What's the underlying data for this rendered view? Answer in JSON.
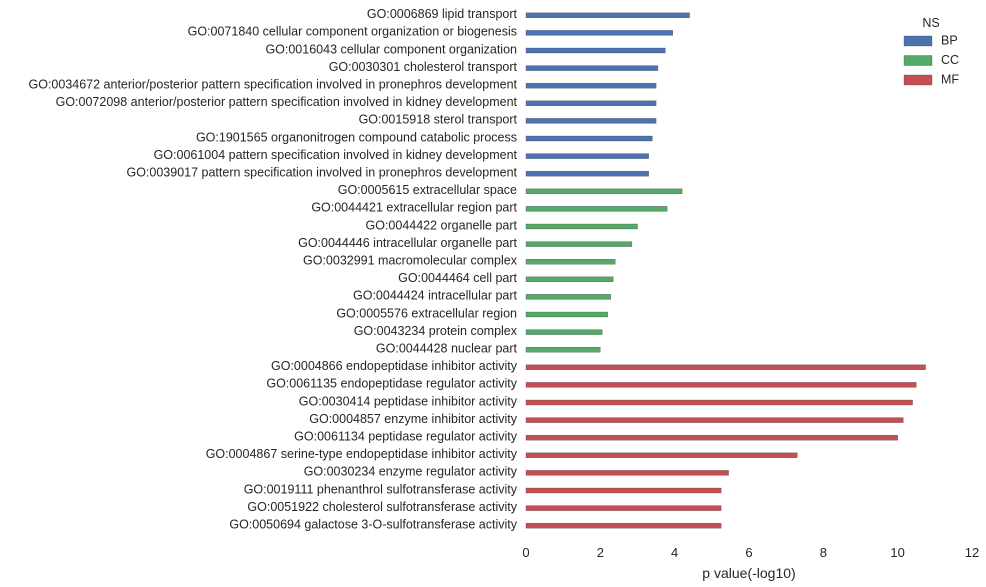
{
  "chart_data": {
    "type": "bar",
    "orientation": "horizontal",
    "xlabel": "p value(-log10)",
    "xlim": [
      0,
      12
    ],
    "xticks": [
      0,
      2,
      4,
      6,
      8,
      10,
      12
    ],
    "grid": false,
    "legend": {
      "title": "NS",
      "placement": "top-right",
      "entries": [
        {
          "name": "BP",
          "color": "#4c72b0"
        },
        {
          "name": "CC",
          "color": "#55a868"
        },
        {
          "name": "MF",
          "color": "#c44e52"
        }
      ]
    },
    "bars": [
      {
        "label": "GO:0006869 lipid transport",
        "value": 4.4,
        "ns": "BP"
      },
      {
        "label": "GO:0071840 cellular component organization or biogenesis",
        "value": 3.95,
        "ns": "BP"
      },
      {
        "label": "GO:0016043 cellular component organization",
        "value": 3.75,
        "ns": "BP"
      },
      {
        "label": "GO:0030301 cholesterol transport",
        "value": 3.55,
        "ns": "BP"
      },
      {
        "label": "GO:0034672 anterior/posterior pattern specification involved in pronephros development",
        "value": 3.5,
        "ns": "BP"
      },
      {
        "label": "GO:0072098 anterior/posterior pattern specification involved in kidney development",
        "value": 3.5,
        "ns": "BP"
      },
      {
        "label": "GO:0015918 sterol transport",
        "value": 3.5,
        "ns": "BP"
      },
      {
        "label": "GO:1901565 organonitrogen compound catabolic process",
        "value": 3.4,
        "ns": "BP"
      },
      {
        "label": "GO:0061004 pattern specification involved in kidney development",
        "value": 3.3,
        "ns": "BP"
      },
      {
        "label": "GO:0039017 pattern specification involved in pronephros development",
        "value": 3.3,
        "ns": "BP"
      },
      {
        "label": "GO:0005615 extracellular space",
        "value": 4.2,
        "ns": "CC"
      },
      {
        "label": "GO:0044421 extracellular region part",
        "value": 3.8,
        "ns": "CC"
      },
      {
        "label": "GO:0044422 organelle part",
        "value": 3.0,
        "ns": "CC"
      },
      {
        "label": "GO:0044446 intracellular organelle part",
        "value": 2.85,
        "ns": "CC"
      },
      {
        "label": "GO:0032991 macromolecular complex",
        "value": 2.4,
        "ns": "CC"
      },
      {
        "label": "GO:0044464 cell part",
        "value": 2.35,
        "ns": "CC"
      },
      {
        "label": "GO:0044424 intracellular part",
        "value": 2.28,
        "ns": "CC"
      },
      {
        "label": "GO:0005576 extracellular region",
        "value": 2.2,
        "ns": "CC"
      },
      {
        "label": "GO:0043234 protein complex",
        "value": 2.05,
        "ns": "CC"
      },
      {
        "label": "GO:0044428 nuclear part",
        "value": 2.0,
        "ns": "CC"
      },
      {
        "label": "GO:0004866 endopeptidase inhibitor activity",
        "value": 10.75,
        "ns": "MF"
      },
      {
        "label": "GO:0061135 endopeptidase regulator activity",
        "value": 10.5,
        "ns": "MF"
      },
      {
        "label": "GO:0030414 peptidase inhibitor activity",
        "value": 10.4,
        "ns": "MF"
      },
      {
        "label": "GO:0004857 enzyme inhibitor activity",
        "value": 10.15,
        "ns": "MF"
      },
      {
        "label": "GO:0061134 peptidase regulator activity",
        "value": 10.0,
        "ns": "MF"
      },
      {
        "label": "GO:0004867 serine-type endopeptidase inhibitor activity",
        "value": 7.3,
        "ns": "MF"
      },
      {
        "label": "GO:0030234 enzyme regulator activity",
        "value": 5.45,
        "ns": "MF"
      },
      {
        "label": "GO:0019111 phenanthrol sulfotransferase activity",
        "value": 5.25,
        "ns": "MF"
      },
      {
        "label": "GO:0051922 cholesterol sulfotransferase activity",
        "value": 5.25,
        "ns": "MF"
      },
      {
        "label": "GO:0050694 galactose 3-O-sulfotransferase activity",
        "value": 5.25,
        "ns": "MF"
      }
    ]
  }
}
